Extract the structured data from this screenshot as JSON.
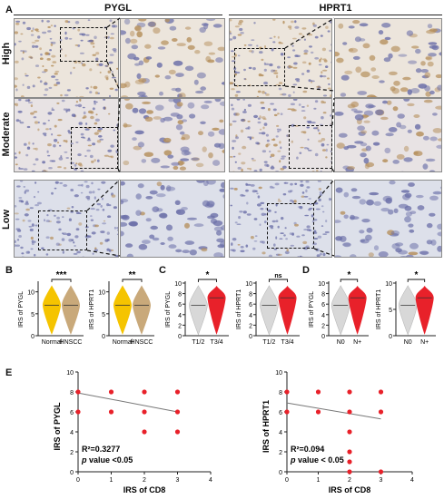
{
  "panelA": {
    "letter": "A",
    "columns": [
      "PYGL",
      "HPRT1"
    ],
    "rows": [
      "High",
      "Moderate",
      "Low"
    ]
  },
  "panelB": {
    "letter": "B",
    "plots": [
      {
        "ylabel": "IRS of PYGL",
        "groups": [
          "Normal",
          "HNSCC"
        ],
        "sig": "***",
        "yticks": [
          0,
          5,
          10
        ],
        "ylim": [
          0,
          12
        ],
        "colors": [
          "#f5c400",
          "#c9a97a"
        ]
      },
      {
        "ylabel": "IRS of HPRT1",
        "groups": [
          "Normal",
          "HNSCC"
        ],
        "sig": "**",
        "yticks": [
          0,
          5,
          10
        ],
        "ylim": [
          0,
          12
        ],
        "colors": [
          "#f5c400",
          "#c9a97a"
        ]
      }
    ]
  },
  "panelC": {
    "letter": "C",
    "plots": [
      {
        "ylabel": "IRS of PYGL",
        "groups": [
          "T1/2",
          "T3/4"
        ],
        "sig": "*",
        "yticks": [
          0,
          2,
          4,
          6,
          8,
          10
        ],
        "ylim": [
          0,
          10
        ],
        "colors": [
          "#d8d8d8",
          "#e8212a"
        ]
      },
      {
        "ylabel": "IRS of HPRT1",
        "groups": [
          "T1/2",
          "T3/4"
        ],
        "sig": "ns",
        "yticks": [
          0,
          2,
          4,
          6,
          8,
          10
        ],
        "ylim": [
          0,
          10
        ],
        "colors": [
          "#d8d8d8",
          "#e8212a"
        ]
      }
    ]
  },
  "panelD": {
    "letter": "D",
    "plots": [
      {
        "ylabel": "IRS of PYGL",
        "groups": [
          "N0",
          "N+"
        ],
        "sig": "*",
        "yticks": [
          0,
          2,
          4,
          6,
          8,
          10
        ],
        "ylim": [
          0,
          10
        ],
        "colors": [
          "#d8d8d8",
          "#e8212a"
        ]
      },
      {
        "ylabel": "IRS of HPRT1",
        "groups": [
          "N0",
          "N+"
        ],
        "sig": "*",
        "yticks": [
          0,
          5,
          10
        ],
        "ylim": [
          0,
          10
        ],
        "colors": [
          "#d8d8d8",
          "#e8212a"
        ]
      }
    ]
  },
  "panelE": {
    "letter": "E",
    "plots": [
      {
        "ylabel": "IRS of PYGL",
        "xlabel": "IRS of CD8",
        "xticks": [
          0,
          1,
          2,
          3,
          4
        ],
        "yticks": [
          0,
          2,
          4,
          6,
          8,
          10
        ],
        "xlim": [
          0,
          4
        ],
        "ylim": [
          0,
          10
        ],
        "r2_label": "R²=0.3277",
        "p_label": "p",
        "p_rest": " value <0.05",
        "points": [
          [
            0,
            8
          ],
          [
            0,
            6
          ],
          [
            1,
            8
          ],
          [
            1,
            6
          ],
          [
            2,
            8
          ],
          [
            2,
            6
          ],
          [
            2,
            4
          ],
          [
            3,
            8
          ],
          [
            3,
            6
          ],
          [
            3,
            4
          ]
        ],
        "line": [
          [
            0,
            7.9
          ],
          [
            3,
            6.0
          ]
        ]
      },
      {
        "ylabel": "IRS of HPRT1",
        "xlabel": "IRS of CD8",
        "xticks": [
          0,
          1,
          2,
          3,
          4
        ],
        "yticks": [
          0,
          2,
          4,
          6,
          8,
          10
        ],
        "xlim": [
          0,
          4
        ],
        "ylim": [
          0,
          10
        ],
        "r2_label": "R²=0.094",
        "p_label": "p",
        "p_rest": " value < 0.05",
        "points": [
          [
            0,
            8
          ],
          [
            0,
            6
          ],
          [
            1,
            8
          ],
          [
            1,
            6
          ],
          [
            2,
            8
          ],
          [
            2,
            6
          ],
          [
            2,
            4
          ],
          [
            2,
            2
          ],
          [
            2,
            1
          ],
          [
            2,
            0
          ],
          [
            3,
            8
          ],
          [
            3,
            6
          ],
          [
            3,
            0
          ]
        ],
        "line": [
          [
            0,
            6.9
          ],
          [
            3,
            5.3
          ]
        ]
      }
    ],
    "dot_color": "#e8212a",
    "line_color": "#777777"
  }
}
